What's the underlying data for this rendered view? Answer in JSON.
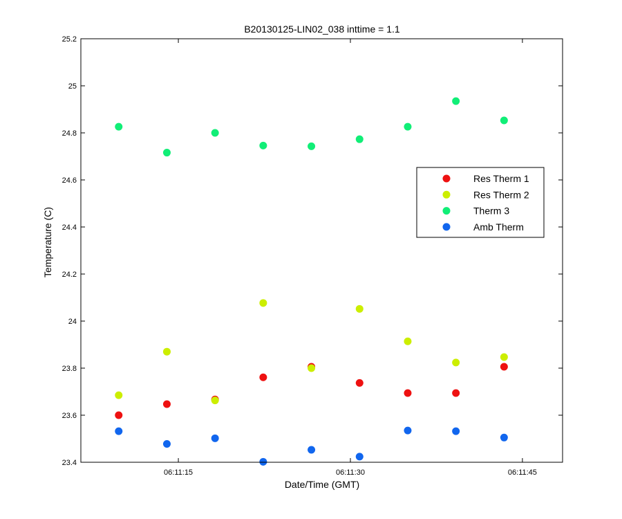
{
  "chart_data": {
    "type": "scatter",
    "title": "B20130125-LIN02_038 inttime = 1.1",
    "xlabel": "Date/Time (GMT)",
    "ylabel": "Temperature (C)",
    "x_unit": "seconds past 06:11:00 GMT",
    "xlim": [
      6.5,
      48.5
    ],
    "ylim": [
      23.4,
      25.2
    ],
    "x_ticks": [
      {
        "value": 15,
        "label": "06:11:15"
      },
      {
        "value": 30,
        "label": "06:11:30"
      },
      {
        "value": 45,
        "label": "06:11:45"
      }
    ],
    "y_ticks": [
      {
        "value": 23.4,
        "label": "23.4"
      },
      {
        "value": 23.6,
        "label": "23.6"
      },
      {
        "value": 23.8,
        "label": "23.8"
      },
      {
        "value": 24.0,
        "label": "24"
      },
      {
        "value": 24.2,
        "label": "24.2"
      },
      {
        "value": 24.4,
        "label": "24.4"
      },
      {
        "value": 24.6,
        "label": "24.6"
      },
      {
        "value": 24.8,
        "label": "24.8"
      },
      {
        "value": 25.0,
        "label": "25"
      },
      {
        "value": 25.2,
        "label": "25.2"
      }
    ],
    "grid": false,
    "legend_position": "right",
    "x": [
      9.8,
      14.0,
      18.2,
      22.4,
      26.6,
      30.8,
      35.0,
      39.2,
      43.4
    ],
    "series": [
      {
        "name": "Res Therm 1",
        "color": "#ee1111",
        "values": [
          23.6,
          23.647,
          23.667,
          23.761,
          23.806,
          23.737,
          23.694,
          23.694,
          23.806
        ]
      },
      {
        "name": "Res Therm 2",
        "color": "#ccee00",
        "values": [
          23.685,
          23.87,
          23.663,
          24.077,
          23.8,
          24.052,
          23.914,
          23.824,
          23.847
        ]
      },
      {
        "name": "Therm 3",
        "color": "#11ee77",
        "values": [
          24.826,
          24.716,
          24.8,
          24.746,
          24.743,
          24.773,
          24.826,
          24.935,
          24.853
        ]
      },
      {
        "name": "Amb Therm",
        "color": "#1166ee",
        "values": [
          23.532,
          23.478,
          23.502,
          23.402,
          23.453,
          23.424,
          23.535,
          23.532,
          23.505
        ]
      }
    ]
  }
}
